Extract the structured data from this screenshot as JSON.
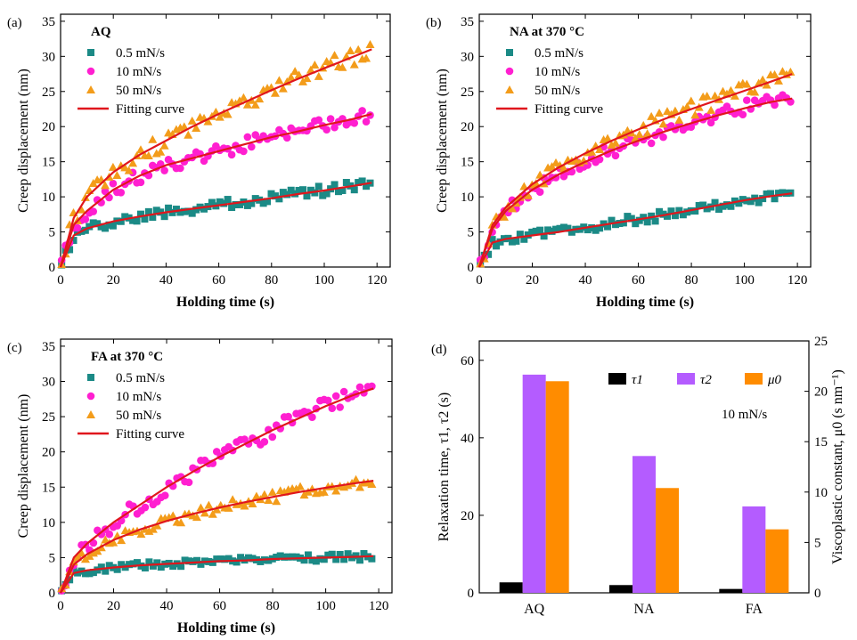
{
  "figure": {
    "panels": {
      "a": {
        "label": "(a)",
        "title": "AQ"
      },
      "b": {
        "label": "(b)",
        "title": "NA at 370 °C"
      },
      "c": {
        "label": "(c)",
        "title": "FA at 370 °C"
      },
      "d": {
        "label": "(d)",
        "annotation": "10 mN/s"
      }
    }
  },
  "chart_data": [
    {
      "type": "scatter",
      "panel": "a",
      "title": "AQ",
      "xlabel": "Holding time (s)",
      "ylabel": "Creep displacement (nm)",
      "xlim": [
        0,
        125
      ],
      "ylim": [
        0,
        36
      ],
      "xticks": [
        0,
        20,
        40,
        60,
        80,
        100,
        120
      ],
      "yticks": [
        0,
        5,
        10,
        15,
        20,
        25,
        30,
        35
      ],
      "legend": [
        "0.5 mN/s",
        "10 mN/s",
        "50 mN/s",
        "Fitting curve"
      ],
      "legend_position": "top-left",
      "series": [
        {
          "name": "0.5 mN/s",
          "marker": "square",
          "color": "#1b8a86",
          "x": [
            0,
            5,
            10,
            20,
            30,
            40,
            50,
            60,
            70,
            80,
            90,
            100,
            110,
            118
          ],
          "y": [
            0,
            4.5,
            5.5,
            6.5,
            7.2,
            7.8,
            8.3,
            8.8,
            9.3,
            9.8,
            10.4,
            10.9,
            11.5,
            12
          ]
        },
        {
          "name": "10 mN/s",
          "marker": "circle",
          "color": "#ff1fd0",
          "x": [
            0,
            5,
            10,
            20,
            30,
            40,
            50,
            60,
            70,
            80,
            90,
            100,
            110,
            118
          ],
          "y": [
            0,
            6,
            8,
            11,
            13,
            14.5,
            15.5,
            16.5,
            17.5,
            18.5,
            19.3,
            20.2,
            21,
            21.8
          ]
        },
        {
          "name": "50 mN/s",
          "marker": "triangle",
          "color": "#f39c1a",
          "x": [
            0,
            5,
            10,
            20,
            30,
            40,
            50,
            60,
            70,
            80,
            90,
            100,
            110,
            118
          ],
          "y": [
            0,
            7,
            10,
            13.5,
            16,
            18,
            20,
            21.8,
            23.5,
            25.2,
            26.8,
            28.3,
            29.8,
            31
          ]
        }
      ]
    },
    {
      "type": "scatter",
      "panel": "b",
      "title": "NA at 370 °C",
      "xlabel": "Holding time (s)",
      "ylabel": "Creep displacement (nm)",
      "xlim": [
        0,
        125
      ],
      "ylim": [
        0,
        36
      ],
      "xticks": [
        0,
        20,
        40,
        60,
        80,
        100,
        120
      ],
      "yticks": [
        0,
        5,
        10,
        15,
        20,
        25,
        30,
        35
      ],
      "legend": [
        "0.5 mN/s",
        "10 mN/s",
        "50 mN/s",
        "Fitting curve"
      ],
      "legend_position": "top-left",
      "series": [
        {
          "name": "0.5 mN/s",
          "marker": "square",
          "color": "#1b8a86",
          "x": [
            0,
            5,
            10,
            20,
            30,
            40,
            50,
            60,
            70,
            80,
            90,
            100,
            110,
            118
          ],
          "y": [
            0,
            3.5,
            4,
            4.5,
            5,
            5.6,
            6.2,
            6.8,
            7.4,
            8.1,
            8.8,
            9.5,
            10.1,
            10.5
          ]
        },
        {
          "name": "10 mN/s",
          "marker": "circle",
          "color": "#ff1fd0",
          "x": [
            0,
            5,
            10,
            20,
            30,
            40,
            50,
            60,
            70,
            80,
            90,
            100,
            110,
            118
          ],
          "y": [
            0,
            5.5,
            8,
            11,
            13.2,
            15,
            16.6,
            18,
            19.3,
            20.5,
            21.6,
            22.6,
            23.5,
            24
          ]
        },
        {
          "name": "50 mN/s",
          "marker": "triangle",
          "color": "#f39c1a",
          "x": [
            0,
            5,
            10,
            20,
            30,
            40,
            50,
            60,
            70,
            80,
            90,
            100,
            110,
            118
          ],
          "y": [
            0,
            6,
            8.5,
            11.8,
            14.2,
            16.2,
            18,
            19.6,
            21.1,
            22.5,
            23.8,
            25.1,
            26.4,
            27.5
          ]
        }
      ]
    },
    {
      "type": "scatter",
      "panel": "c",
      "title": "FA at 370 °C",
      "xlabel": "Holding time (s)",
      "ylabel": "Creep displacement (nm)",
      "xlim": [
        0,
        125
      ],
      "ylim": [
        0,
        36
      ],
      "xticks": [
        0,
        20,
        40,
        60,
        80,
        100,
        120
      ],
      "yticks": [
        0,
        5,
        10,
        15,
        20,
        25,
        30,
        35
      ],
      "legend": [
        "0.5 mN/s",
        "10 mN/s",
        "50 mN/s",
        "Fitting curve"
      ],
      "legend_position": "top-left",
      "series": [
        {
          "name": "0.5 mN/s",
          "marker": "square",
          "color": "#1b8a86",
          "x": [
            0,
            5,
            10,
            20,
            30,
            40,
            50,
            60,
            70,
            80,
            90,
            100,
            110,
            118
          ],
          "y": [
            0,
            2.8,
            3.2,
            3.6,
            3.9,
            4.1,
            4.3,
            4.5,
            4.6,
            4.8,
            4.9,
            5,
            5.1,
            5.2
          ]
        },
        {
          "name": "10 mN/s",
          "marker": "circle",
          "color": "#ff1fd0",
          "x": [
            0,
            5,
            10,
            20,
            30,
            40,
            50,
            60,
            70,
            80,
            90,
            100,
            110,
            118
          ],
          "y": [
            0,
            5,
            7,
            10,
            12.5,
            15,
            17.2,
            19.3,
            21.2,
            23.1,
            24.8,
            26.5,
            28,
            29
          ]
        },
        {
          "name": "50 mN/s",
          "marker": "triangle",
          "color": "#f39c1a",
          "x": [
            0,
            5,
            10,
            20,
            30,
            40,
            50,
            60,
            70,
            80,
            90,
            100,
            110,
            118
          ],
          "y": [
            0,
            4,
            5.5,
            7.5,
            9,
            10.2,
            11.2,
            12.1,
            12.9,
            13.6,
            14.3,
            14.9,
            15.5,
            15.9
          ]
        }
      ]
    },
    {
      "type": "bar",
      "panel": "d",
      "categories": [
        "AQ",
        "NA",
        "FA"
      ],
      "ylabel": "Relaxation time, τ1, τ2 (s)",
      "y2label": "Viscoplastic constant, μ0 (s nm⁻¹)",
      "ylim": [
        0,
        65
      ],
      "y2lim": [
        0,
        25
      ],
      "yticks": [
        0,
        20,
        40,
        60
      ],
      "y2ticks": [
        0,
        5,
        10,
        15,
        20,
        25
      ],
      "legend_position": "top-right",
      "series": [
        {
          "name": "τ1",
          "axis": "left",
          "color": "#000000",
          "values": [
            2.7,
            2,
            1
          ]
        },
        {
          "name": "τ2",
          "axis": "left",
          "color": "#b45cff",
          "values": [
            56.3,
            35.3,
            22.3
          ]
        },
        {
          "name": "μ0",
          "axis": "right",
          "color": "#ff8c00",
          "values": [
            21,
            10.4,
            6.3
          ]
        }
      ]
    }
  ]
}
